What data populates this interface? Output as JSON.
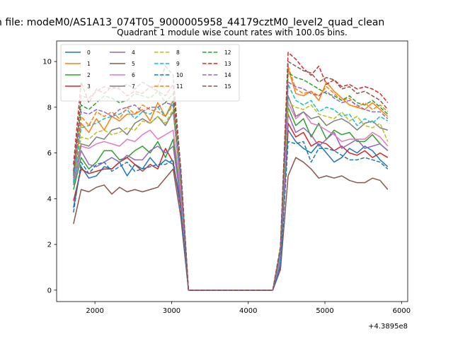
{
  "chart_data": {
    "type": "line",
    "suptitle": "n file: modeM0/AS1A13_074T05_9000005958_44179cztM0_level2_quad_clean",
    "title": "Quadrant 1 module wise count rates with 100.0s bins.",
    "xlabel": "",
    "ylabel": "",
    "x_offset_label": "+4.3895e8",
    "xlim": [
      1500,
      6080
    ],
    "ylim": [
      -0.5,
      10.9
    ],
    "x_ticks": [
      2000,
      3000,
      4000,
      5000,
      6000
    ],
    "x_tick_labels": [
      "2000",
      "3000",
      "4000",
      "5000",
      "6000"
    ],
    "y_ticks": [
      0,
      2,
      4,
      6,
      8,
      10
    ],
    "y_tick_labels": [
      "0",
      "2",
      "4",
      "6",
      "8",
      "10"
    ],
    "grid": false,
    "legend_placement": "upper-left",
    "x": [
      1720,
      1820,
      1920,
      2020,
      2120,
      2220,
      2320,
      2420,
      2520,
      2620,
      2720,
      2820,
      2920,
      3020,
      3120,
      3220,
      3320,
      3420,
      3520,
      3620,
      3720,
      3820,
      3920,
      4020,
      4120,
      4220,
      4320,
      4420,
      4520,
      4620,
      4720,
      4820,
      4920,
      5020,
      5120,
      5220,
      5320,
      5420,
      5520,
      5620,
      5720,
      5820
    ],
    "series": [
      {
        "name": "0",
        "color": "#1f77b4",
        "dash": "solid",
        "values": [
          3.6,
          5.4,
          4.9,
          5.0,
          5.4,
          5.3,
          5.6,
          5.0,
          5.5,
          5.3,
          5.8,
          5.4,
          5.7,
          5.5,
          3.9,
          0.0,
          0.0,
          0.0,
          0.0,
          0.0,
          0.0,
          0.0,
          0.0,
          0.0,
          0.0,
          0.0,
          0.0,
          1.2,
          7.0,
          6.5,
          6.2,
          6.0,
          6.4,
          6.0,
          5.6,
          5.8,
          6.2,
          6.0,
          6.3,
          6.1,
          5.7,
          5.4
        ]
      },
      {
        "name": "1",
        "color": "#ff7f0e",
        "dash": "solid",
        "values": [
          4.8,
          7.3,
          6.9,
          7.5,
          7.0,
          7.6,
          7.4,
          7.7,
          7.7,
          7.9,
          7.4,
          8.2,
          7.6,
          8.3,
          4.8,
          0.0,
          0.0,
          0.0,
          0.0,
          0.0,
          0.0,
          0.0,
          0.0,
          0.0,
          0.0,
          0.0,
          0.0,
          1.7,
          9.7,
          8.6,
          8.5,
          8.7,
          8.3,
          9.1,
          8.7,
          8.4,
          8.1,
          8.0,
          7.9,
          8.2,
          7.9,
          7.6
        ]
      },
      {
        "name": "2",
        "color": "#2ca02c",
        "dash": "solid",
        "values": [
          4.4,
          5.8,
          5.3,
          5.6,
          6.1,
          6.1,
          5.7,
          5.8,
          6.1,
          6.3,
          6.0,
          6.5,
          5.8,
          6.6,
          4.2,
          0.0,
          0.0,
          0.0,
          0.0,
          0.0,
          0.0,
          0.0,
          0.0,
          0.0,
          0.0,
          0.0,
          0.0,
          1.3,
          8.0,
          7.2,
          7.5,
          6.7,
          7.3,
          6.6,
          7.0,
          6.8,
          6.9,
          6.5,
          6.5,
          6.8,
          6.4,
          6.1
        ]
      },
      {
        "name": "3",
        "color": "#d62728",
        "dash": "solid",
        "values": [
          3.9,
          5.3,
          5.1,
          5.2,
          5.3,
          5.3,
          5.6,
          5.8,
          5.5,
          5.2,
          5.5,
          5.3,
          6.2,
          5.6,
          3.6,
          0.0,
          0.0,
          0.0,
          0.0,
          0.0,
          0.0,
          0.0,
          0.0,
          0.0,
          0.0,
          0.0,
          0.0,
          1.1,
          7.3,
          6.7,
          6.9,
          6.3,
          6.5,
          6.4,
          6.1,
          6.3,
          6.0,
          5.9,
          6.1,
          5.8,
          6.0,
          5.8
        ]
      },
      {
        "name": "4",
        "color": "#9467bd",
        "dash": "solid",
        "values": [
          4.6,
          6.1,
          5.5,
          5.4,
          5.6,
          5.8,
          5.6,
          5.9,
          5.7,
          5.7,
          6.1,
          6.3,
          6.0,
          6.3,
          3.9,
          0.0,
          0.0,
          0.0,
          0.0,
          0.0,
          0.0,
          0.0,
          0.0,
          0.0,
          0.0,
          0.0,
          0.0,
          1.2,
          7.7,
          6.9,
          7.1,
          6.8,
          6.3,
          6.6,
          6.9,
          6.2,
          6.4,
          6.6,
          6.2,
          6.3,
          6.4,
          6.1
        ]
      },
      {
        "name": "5",
        "color": "#8c564b",
        "dash": "solid",
        "values": [
          2.9,
          4.4,
          4.3,
          4.5,
          4.6,
          4.2,
          4.5,
          4.3,
          4.4,
          4.3,
          4.4,
          4.5,
          4.9,
          5.3,
          3.2,
          0.0,
          0.0,
          0.0,
          0.0,
          0.0,
          0.0,
          0.0,
          0.0,
          0.0,
          0.0,
          0.0,
          0.0,
          0.9,
          5.0,
          5.8,
          5.6,
          5.3,
          4.9,
          5.0,
          4.9,
          5.0,
          4.8,
          4.7,
          4.7,
          4.9,
          4.8,
          4.4
        ]
      },
      {
        "name": "6",
        "color": "#e377c2",
        "dash": "solid",
        "values": [
          4.8,
          6.3,
          6.2,
          6.4,
          6.5,
          6.4,
          6.3,
          6.6,
          6.5,
          6.8,
          7.0,
          6.6,
          6.8,
          7.0,
          4.3,
          0.0,
          0.0,
          0.0,
          0.0,
          0.0,
          0.0,
          0.0,
          0.0,
          0.0,
          0.0,
          0.0,
          0.0,
          1.4,
          8.2,
          7.5,
          7.8,
          7.3,
          7.2,
          7.0,
          6.8,
          6.5,
          6.6,
          6.6,
          6.6,
          6.9,
          6.7,
          6.3
        ]
      },
      {
        "name": "7",
        "color": "#7f7f7f",
        "dash": "solid",
        "values": [
          4.9,
          6.4,
          6.3,
          6.7,
          6.6,
          7.0,
          7.1,
          6.8,
          7.3,
          7.5,
          7.3,
          7.6,
          7.2,
          7.8,
          4.6,
          0.0,
          0.0,
          0.0,
          0.0,
          0.0,
          0.0,
          0.0,
          0.0,
          0.0,
          0.0,
          0.0,
          0.0,
          1.5,
          8.5,
          7.6,
          7.8,
          7.5,
          7.6,
          7.2,
          7.4,
          7.5,
          7.3,
          7.0,
          7.3,
          7.4,
          7.1,
          7.0
        ]
      },
      {
        "name": "8",
        "color": "#bcbd22",
        "dash": "dashed",
        "values": [
          4.7,
          6.7,
          6.6,
          6.9,
          7.0,
          6.8,
          6.9,
          7.1,
          7.0,
          7.4,
          7.3,
          7.6,
          7.3,
          7.9,
          4.7,
          0.0,
          0.0,
          0.0,
          0.0,
          0.0,
          0.0,
          0.0,
          0.0,
          0.0,
          0.0,
          0.0,
          0.0,
          1.6,
          8.2,
          8.0,
          7.9,
          8.1,
          7.7,
          7.6,
          7.5,
          7.8,
          7.4,
          7.6,
          7.2,
          7.1,
          7.3,
          6.5
        ]
      },
      {
        "name": "9",
        "color": "#17becf",
        "dash": "dashed",
        "values": [
          4.7,
          7.1,
          7.2,
          7.3,
          7.5,
          7.6,
          7.7,
          7.9,
          7.5,
          7.8,
          7.7,
          8.0,
          7.6,
          8.2,
          4.8,
          0.0,
          0.0,
          0.0,
          0.0,
          0.0,
          0.0,
          0.0,
          0.0,
          0.0,
          0.0,
          0.0,
          0.0,
          1.6,
          9.0,
          8.3,
          8.1,
          8.3,
          7.8,
          8.0,
          7.9,
          7.6,
          7.7,
          7.2,
          7.5,
          7.3,
          7.6,
          7.4
        ]
      },
      {
        "name": "10",
        "color": "#1f77b4",
        "dash": "dashed",
        "values": [
          3.4,
          5.6,
          5.1,
          5.5,
          5.6,
          5.2,
          5.4,
          5.6,
          5.2,
          5.3,
          5.4,
          5.5,
          5.5,
          5.7,
          3.5,
          0.0,
          0.0,
          0.0,
          0.0,
          0.0,
          0.0,
          0.0,
          0.0,
          0.0,
          0.0,
          0.0,
          0.0,
          1.0,
          6.5,
          6.4,
          6.5,
          5.6,
          6.2,
          6.2,
          6.1,
          5.9,
          5.7,
          5.7,
          5.8,
          5.7,
          5.6,
          5.3
        ]
      },
      {
        "name": "11",
        "color": "#ff7f0e",
        "dash": "dashed",
        "values": [
          5.0,
          7.6,
          7.2,
          7.8,
          7.6,
          7.8,
          7.5,
          8.0,
          7.7,
          8.1,
          7.9,
          7.8,
          7.6,
          8.1,
          4.9,
          0.0,
          0.0,
          0.0,
          0.0,
          0.0,
          0.0,
          0.0,
          0.0,
          0.0,
          0.0,
          0.0,
          0.0,
          1.8,
          9.8,
          8.8,
          8.6,
          8.7,
          8.5,
          8.9,
          8.6,
          8.3,
          8.4,
          8.0,
          8.2,
          7.9,
          8.1,
          7.8
        ]
      },
      {
        "name": "12",
        "color": "#2ca02c",
        "dash": "dashed",
        "values": [
          5.1,
          8.1,
          7.9,
          8.2,
          8.5,
          8.4,
          8.2,
          8.3,
          8.6,
          8.5,
          8.4,
          8.7,
          8.2,
          8.6,
          5.1,
          0.0,
          0.0,
          0.0,
          0.0,
          0.0,
          0.0,
          0.0,
          0.0,
          0.0,
          0.0,
          0.0,
          0.0,
          1.8,
          9.5,
          9.3,
          9.2,
          9.0,
          8.8,
          8.6,
          8.5,
          8.3,
          8.5,
          8.2,
          8.1,
          8.3,
          8.0,
          7.7
        ]
      },
      {
        "name": "13",
        "color": "#d62728",
        "dash": "dashed",
        "values": [
          5.5,
          9.1,
          8.2,
          8.8,
          8.6,
          8.9,
          8.8,
          8.5,
          8.7,
          8.6,
          8.9,
          8.7,
          8.5,
          9.0,
          5.3,
          0.0,
          0.0,
          0.0,
          0.0,
          0.0,
          0.0,
          0.0,
          0.0,
          0.0,
          0.0,
          0.0,
          0.0,
          1.9,
          10.4,
          10.1,
          9.7,
          9.4,
          9.8,
          9.0,
          9.2,
          8.9,
          9.0,
          8.8,
          8.9,
          8.8,
          8.6,
          8.2
        ]
      },
      {
        "name": "14",
        "color": "#9467bd",
        "dash": "dashed",
        "values": [
          5.0,
          7.8,
          7.7,
          7.9,
          7.8,
          7.6,
          7.9,
          8.0,
          8.1,
          7.8,
          8.0,
          8.0,
          8.2,
          8.1,
          4.9,
          0.0,
          0.0,
          0.0,
          0.0,
          0.0,
          0.0,
          0.0,
          0.0,
          0.0,
          0.0,
          0.0,
          0.0,
          1.7,
          9.1,
          8.9,
          8.8,
          8.6,
          8.5,
          8.7,
          8.4,
          8.2,
          8.3,
          8.1,
          7.9,
          7.8,
          7.8,
          7.5
        ]
      },
      {
        "name": "15",
        "color": "#8c564b",
        "dash": "dashed",
        "values": [
          5.2,
          8.5,
          8.4,
          8.7,
          8.9,
          8.8,
          8.9,
          9.0,
          8.8,
          9.1,
          8.9,
          8.9,
          9.8,
          9.4,
          5.3,
          0.0,
          0.0,
          0.0,
          0.0,
          0.0,
          0.0,
          0.0,
          0.0,
          0.0,
          0.0,
          0.0,
          0.0,
          1.9,
          10.0,
          9.8,
          9.6,
          9.5,
          9.1,
          9.3,
          9.2,
          8.8,
          8.9,
          8.6,
          8.7,
          8.5,
          8.3,
          7.9
        ]
      }
    ]
  }
}
